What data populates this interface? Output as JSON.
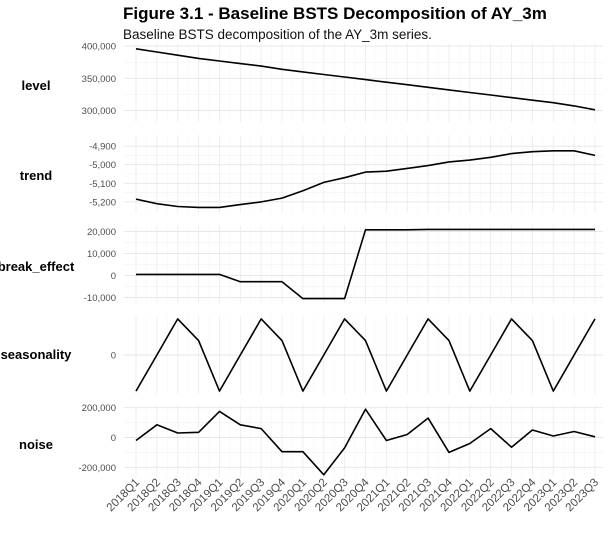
{
  "header": {
    "title": "Figure 3.1 - Baseline BSTS Decomposition of AY_3m",
    "subtitle": "Baseline BSTS decomposition of the AY_3m series."
  },
  "chart_data": {
    "type": "line",
    "x": [
      "2018Q1",
      "2018Q2",
      "2018Q3",
      "2018Q4",
      "2019Q1",
      "2019Q2",
      "2019Q3",
      "2019Q4",
      "2020Q1",
      "2020Q2",
      "2020Q3",
      "2020Q4",
      "2021Q1",
      "2021Q2",
      "2021Q3",
      "2021Q4",
      "2022Q1",
      "2022Q2",
      "2022Q3",
      "2022Q4",
      "2023Q1",
      "2023Q2",
      "2023Q3"
    ],
    "line_color": "#000000",
    "grid": true,
    "panels": [
      {
        "name": "level",
        "ylim": [
          282000,
          405000
        ],
        "ticks": [
          {
            "v": 400000,
            "label": "400,000"
          },
          {
            "v": 350000,
            "label": "350,000"
          },
          {
            "v": 300000,
            "label": "300,000"
          }
        ],
        "values": [
          396000,
          391000,
          386000,
          381000,
          377000,
          373000,
          369000,
          364000,
          360000,
          356000,
          352000,
          348000,
          344000,
          340000,
          336000,
          332000,
          328000,
          324000,
          320000,
          316000,
          312000,
          307000,
          301000
        ]
      },
      {
        "name": "trend",
        "ylim": [
          -5260,
          -4840
        ],
        "ticks": [
          {
            "v": -4900,
            "label": "-4,900"
          },
          {
            "v": -5000,
            "label": "-5,000"
          },
          {
            "v": -5100,
            "label": "-5,100"
          },
          {
            "v": -5200,
            "label": "-5,200"
          }
        ],
        "values": [
          -5185,
          -5210,
          -5225,
          -5230,
          -5230,
          -5215,
          -5200,
          -5180,
          -5140,
          -5095,
          -5070,
          -5040,
          -5035,
          -5020,
          -5005,
          -4985,
          -4975,
          -4960,
          -4940,
          -4930,
          -4925,
          -4925,
          -4950
        ]
      },
      {
        "name": "break_effect",
        "ylim": [
          -12500,
          23000
        ],
        "ticks": [
          {
            "v": 20000,
            "label": "20,000"
          },
          {
            "v": 10000,
            "label": "10,000"
          },
          {
            "v": 0,
            "label": "0"
          },
          {
            "v": -10000,
            "label": "-10,000"
          }
        ],
        "values": [
          500,
          500,
          500,
          500,
          500,
          -2800,
          -2800,
          -2800,
          -10500,
          -10500,
          -10500,
          20800,
          20800,
          20800,
          21000,
          21000,
          21000,
          21000,
          21000,
          21000,
          21000,
          21000,
          21000
        ]
      },
      {
        "name": "seasonality",
        "ylim": [
          -1.08,
          1.08
        ],
        "ticks": [
          {
            "v": 0,
            "label": "0"
          }
        ],
        "values": [
          -1,
          0,
          1,
          0.4,
          -1,
          0,
          1,
          0.4,
          -1,
          0,
          1,
          0.4,
          -1,
          0,
          1,
          0.4,
          -1,
          0,
          1,
          0.4,
          -1,
          0,
          1
        ]
      },
      {
        "name": "noise",
        "ylim": [
          -265000,
          218000
        ],
        "ticks": [
          {
            "v": 200000,
            "label": "200,000"
          },
          {
            "v": 0,
            "label": "0"
          },
          {
            "v": -200000,
            "label": "-200,000"
          }
        ],
        "values": [
          -20000,
          85000,
          30000,
          35000,
          175000,
          85000,
          60000,
          -95000,
          -95000,
          -250000,
          -70000,
          190000,
          -20000,
          20000,
          130000,
          -100000,
          -40000,
          60000,
          -65000,
          50000,
          10000,
          40000,
          5000
        ]
      }
    ]
  }
}
